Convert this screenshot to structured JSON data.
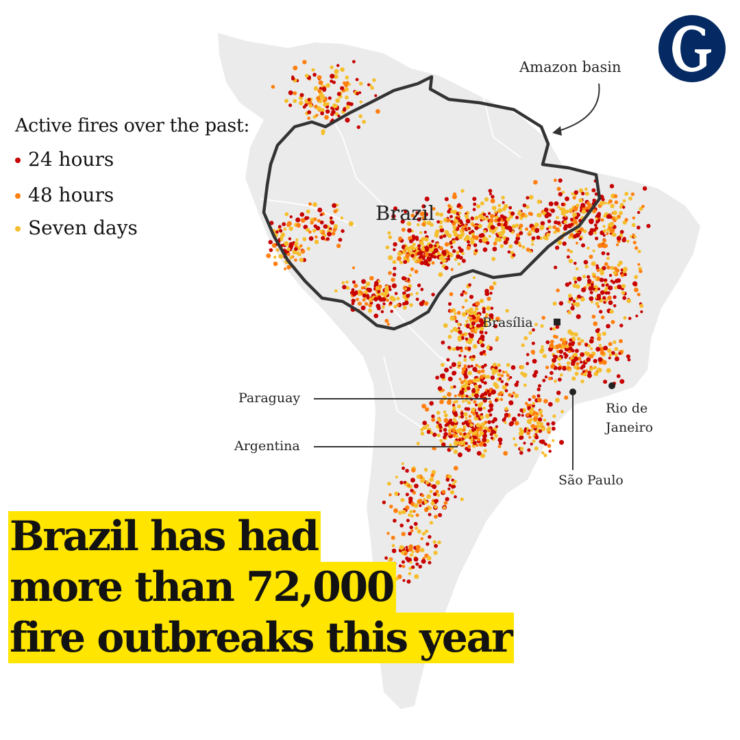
{
  "legend": {
    "title": "Active fires over the past:",
    "items": [
      {
        "label": "24 hours",
        "color": "#c70000"
      },
      {
        "label": "48 hours",
        "color": "#ff7f0f"
      },
      {
        "label": "Seven days",
        "color": "#f5be2c"
      }
    ]
  },
  "labels": {
    "amazon_basin": "Amazon basin",
    "brazil": "Brazil",
    "brasilia": "Brasília",
    "paraguay": "Paraguay",
    "argentina": "Argentina",
    "rio_line1": "Rio de",
    "rio_line2": "Janeiro",
    "sao_paulo": "São Paulo"
  },
  "headline": {
    "line1": "Brazil has had",
    "line2": "more than 72,000",
    "line3": "fire outbreaks this year"
  },
  "colors": {
    "land": "#ebebeb",
    "borders": "#ffffff",
    "amazon_outline": "#333333",
    "logo_bg": "#052962",
    "headline_bg": "#ffe500"
  },
  "logo": {
    "icon": "guardian-g-logo"
  }
}
